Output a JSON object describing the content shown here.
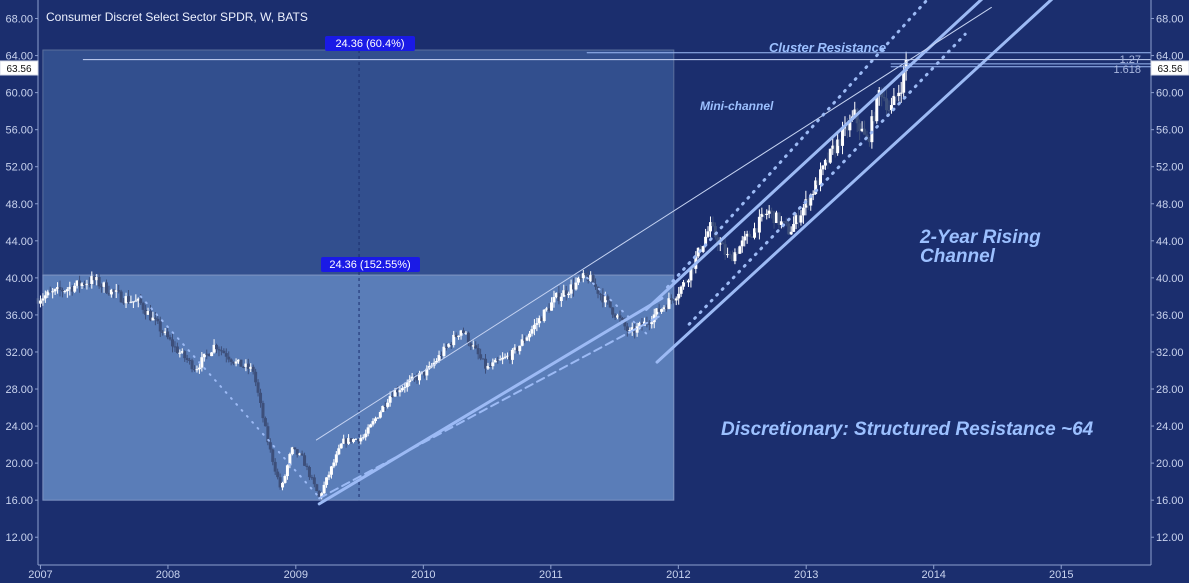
{
  "chart_data": {
    "type": "candlestick",
    "title": "Consumer Discret Select Sector SPDR, W, BATS",
    "x_axis": {
      "ticks": [
        "2007",
        "2008",
        "2009",
        "2010",
        "2011",
        "2012",
        "2013",
        "2014",
        "2015"
      ],
      "range": [
        "2006-12-25",
        "2015-09-15"
      ]
    },
    "y_axis": {
      "ticks": [
        "12.00",
        "16.00",
        "20.00",
        "24.00",
        "28.00",
        "32.00",
        "36.00",
        "40.00",
        "44.00",
        "48.00",
        "52.00",
        "56.00",
        "60.00",
        "64.00",
        "68.00"
      ],
      "range": [
        9.0,
        70.0
      ]
    },
    "last_price": {
      "label": "63.56",
      "value": 63.56
    },
    "grid": false,
    "colors": {
      "background": "#1b2e6e",
      "up": "#ffffff",
      "down": "#3d4f7a",
      "channel": "#9cbaf5",
      "box_upper": "#324f8e",
      "box_lower": "#5a7db8",
      "tag": "#1a1ae6"
    },
    "measure_lower": {
      "label": "24.36 (152.55%)",
      "from": "2007-01-08",
      "to": "2011-12-19",
      "low": 16.0,
      "high": 40.3,
      "vline_date": "2009-07-01"
    },
    "measure_upper": {
      "label": "24.36 (60.4%)",
      "from": "2007-01-08",
      "to": "2011-12-19",
      "low": 40.3,
      "high": 64.6
    },
    "fib_labels": [
      "1.27",
      "1.618"
    ],
    "annotations": {
      "cluster": "Cluster Resistance",
      "mini": "Mini-channel",
      "channel_line1": "2-Year Rising",
      "channel_line2": "Channel",
      "main": "Discretionary: Structured Resistance ~64"
    },
    "anchors": [
      [
        "2006-12-25",
        37.8
      ],
      [
        "2007-06-01",
        39.8
      ],
      [
        "2007-08-15",
        38.0
      ],
      [
        "2007-10-15",
        37.2
      ],
      [
        "2008-01-20",
        32.5
      ],
      [
        "2008-03-20",
        30.2
      ],
      [
        "2008-05-15",
        32.8
      ],
      [
        "2008-07-15",
        30.8
      ],
      [
        "2008-09-01",
        30.0
      ],
      [
        "2008-10-15",
        22.0
      ],
      [
        "2008-11-20",
        17.0
      ],
      [
        "2008-12-20",
        21.5
      ],
      [
        "2009-01-20",
        20.5
      ],
      [
        "2009-03-09",
        16.3
      ],
      [
        "2009-05-15",
        22.3
      ],
      [
        "2009-07-15",
        22.8
      ],
      [
        "2009-10-01",
        27.5
      ],
      [
        "2010-01-15",
        30.0
      ],
      [
        "2010-04-20",
        34.5
      ],
      [
        "2010-07-01",
        30.2
      ],
      [
        "2010-09-15",
        31.8
      ],
      [
        "2011-01-15",
        37.8
      ],
      [
        "2011-04-15",
        40.2
      ],
      [
        "2011-08-15",
        34.0
      ],
      [
        "2011-10-01",
        35.2
      ],
      [
        "2011-12-15",
        37.8
      ],
      [
        "2012-01-20",
        39.5
      ],
      [
        "2012-04-01",
        45.5
      ],
      [
        "2012-05-25",
        42.0
      ],
      [
        "2012-08-01",
        45.0
      ],
      [
        "2012-09-15",
        47.2
      ],
      [
        "2012-11-15",
        45.0
      ],
      [
        "2013-01-15",
        49.0
      ],
      [
        "2013-03-15",
        53.5
      ],
      [
        "2013-05-20",
        57.5
      ],
      [
        "2013-06-25",
        54.5
      ],
      [
        "2013-08-01",
        60.5
      ],
      [
        "2013-08-30",
        58.0
      ],
      [
        "2013-10-01",
        61.0
      ],
      [
        "2013-10-20",
        63.56
      ]
    ],
    "lines": [
      {
        "name": "channel-upper",
        "style": "solid",
        "width": 3,
        "from": [
          "2011-10-01",
          36.6
        ],
        "to": [
          "2014-07-01",
          71.6
        ]
      },
      {
        "name": "channel-lower",
        "style": "solid",
        "width": 3,
        "from": [
          "2011-11-01",
          30.9
        ],
        "to": [
          "2015-01-15",
          71.5
        ]
      },
      {
        "name": "long-trend-lower",
        "style": "solid",
        "width": 3,
        "from": [
          "2009-03-09",
          15.6
        ],
        "to": [
          "2011-11-15",
          37.8
        ]
      },
      {
        "name": "long-dashed",
        "style": "dashed",
        "width": 2,
        "from": [
          "2009-03-09",
          16.2
        ],
        "to": [
          "2011-11-15",
          36.0
        ]
      },
      {
        "name": "thin-trend",
        "style": "solid",
        "width": 1,
        "from": [
          "2009-03-01",
          22.5
        ],
        "to": [
          "2014-06-15",
          69.2
        ]
      },
      {
        "name": "mini-upper",
        "style": "dotted",
        "width": 3,
        "from": [
          "2011-12-01",
          39.0
        ],
        "to": [
          "2013-12-20",
          70.3
        ]
      },
      {
        "name": "mini-lower",
        "style": "dotted",
        "width": 3,
        "from": [
          "2012-02-01",
          35.0
        ],
        "to": [
          "2014-04-01",
          66.3
        ]
      },
      {
        "name": "decline-dotted",
        "style": "dotted",
        "width": 2,
        "from": [
          "2007-10-15",
          38.0
        ],
        "to": [
          "2009-03-09",
          16.3
        ]
      },
      {
        "name": "crash-dotted",
        "style": "dotted",
        "width": 2,
        "from": [
          "2011-04-15",
          40.0
        ],
        "to": [
          "2011-10-01",
          34.0
        ]
      },
      {
        "name": "resistance-1",
        "style": "solid",
        "width": 1,
        "from": [
          "2011-04-15",
          64.3
        ],
        "to": [
          "2015-09-15",
          64.3
        ]
      },
      {
        "name": "resistance-2",
        "style": "solid",
        "width": 1,
        "from": [
          "2013-09-01",
          63.1
        ],
        "to": [
          "2015-09-15",
          63.1
        ]
      },
      {
        "name": "resistance-3",
        "style": "solid",
        "width": 1,
        "from": [
          "2013-09-01",
          62.8
        ],
        "to": [
          "2015-09-15",
          62.8
        ]
      }
    ]
  }
}
